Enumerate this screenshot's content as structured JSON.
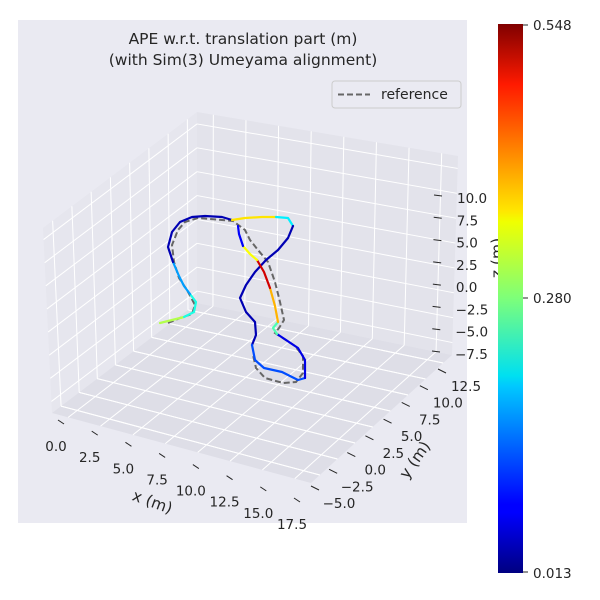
{
  "chart_data": {
    "type": "line",
    "title_line1": "APE w.r.t. translation part (m)",
    "title_line2": "(with Sim(3) Umeyama alignment)",
    "xlabel": "x (m)",
    "ylabel": "y (m)",
    "zlabel": "z (m)",
    "x_ticks": [
      "0.0",
      "2.5",
      "5.0",
      "7.5",
      "10.0",
      "12.5",
      "15.0",
      "17.5"
    ],
    "y_ticks": [
      "−5.0",
      "−2.5",
      "0.0",
      "2.5",
      "5.0",
      "7.5",
      "10.0",
      "12.5"
    ],
    "z_ticks": [
      "−7.5",
      "−5.0",
      "−2.5",
      "0.0",
      "2.5",
      "5.0",
      "7.5",
      "10.0"
    ],
    "legend": {
      "label": "reference",
      "placement": "upper-right"
    },
    "colorbar": {
      "colormap": "jet",
      "min_label": "0.013",
      "mid_label": "0.280",
      "max_label": "0.548",
      "min": 0.013,
      "mid": 0.28,
      "max": 0.548
    },
    "background_color": "#eaeaf2",
    "grid": true
  }
}
